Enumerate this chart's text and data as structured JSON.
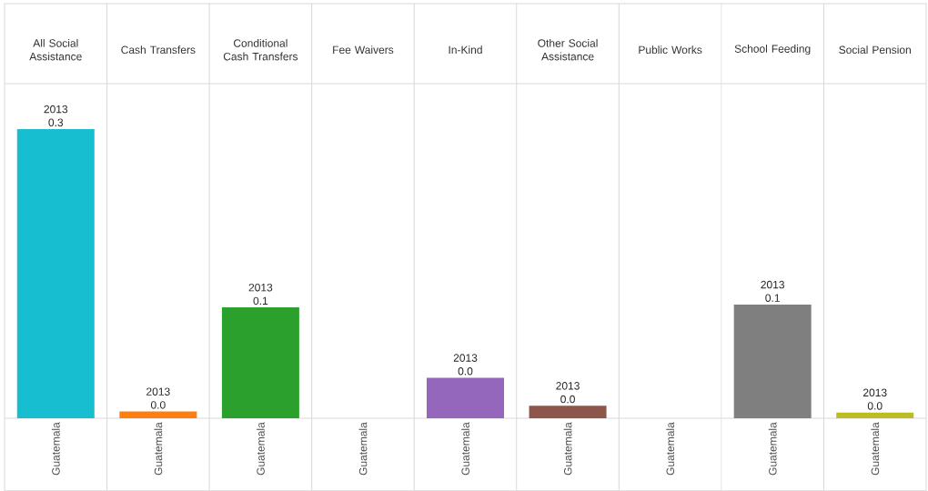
{
  "chart_data": {
    "type": "bar",
    "categories": [
      "All Social Assistance",
      "Cash Transfers",
      "Conditional Cash Transfers",
      "Fee Waivers",
      "In-Kind",
      "Other Social Assistance",
      "Public Works",
      "School Feeding",
      "Social Pension"
    ],
    "series": [
      {
        "name": "2013",
        "colors": [
          "#17becf",
          "#ff7f0e",
          "#2ca02c",
          "#d62728",
          "#9467bd",
          "#8c564b",
          "#e377c2",
          "#7f7f7f",
          "#bcbd22"
        ],
        "values": [
          0.3,
          0.007,
          0.115,
          null,
          0.042,
          0.013,
          null,
          0.118,
          0.006
        ],
        "value_labels": [
          "0.3",
          "0.0",
          "0.1",
          null,
          "0.0",
          "0.0",
          null,
          "0.1",
          "0.0"
        ]
      }
    ],
    "annotations": [
      "Guatemala",
      "Guatemala",
      "Guatemala",
      "Guatemala",
      "Guatemala",
      "Guatemala",
      "Guatemala",
      "Guatemala",
      "Guatemala"
    ]
  }
}
